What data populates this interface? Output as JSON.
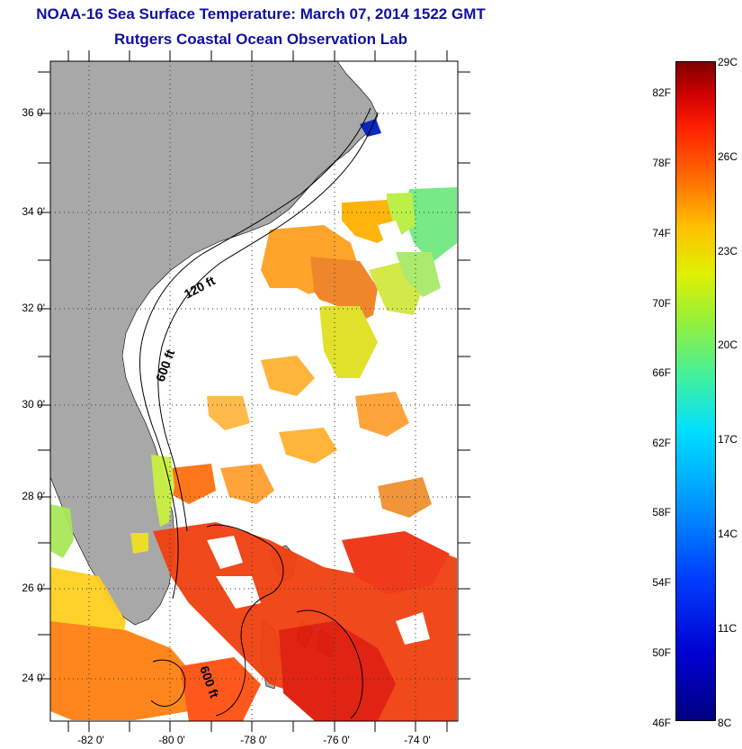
{
  "title_line1": "NOAA-16 Sea Surface Temperature:  March 07, 2014 1522 GMT",
  "title_line2": "Rutgers Coastal Ocean Observation Lab",
  "lat_labels": [
    "36 0'",
    "34 0'",
    "32 0'",
    "30 0'",
    "28 0'",
    "26 0'",
    "24 0'"
  ],
  "lon_labels": [
    "-82 0'",
    "-80 0'",
    "-78 0'",
    "-76 0'",
    "-74 0'"
  ],
  "contour_labels": [
    "120 ft",
    "600 ft",
    "600 ft"
  ],
  "colorbar_f": [
    "82F",
    "78F",
    "74F",
    "70F",
    "66F",
    "62F",
    "58F",
    "54F",
    "50F",
    "46F"
  ],
  "colorbar_c": [
    "29C",
    "26C",
    "23C",
    "20C",
    "17C",
    "14C",
    "11C",
    "8C"
  ],
  "colors": {
    "title": "#1010a0",
    "land": "#a8a8a8",
    "water": "#ffffff"
  }
}
